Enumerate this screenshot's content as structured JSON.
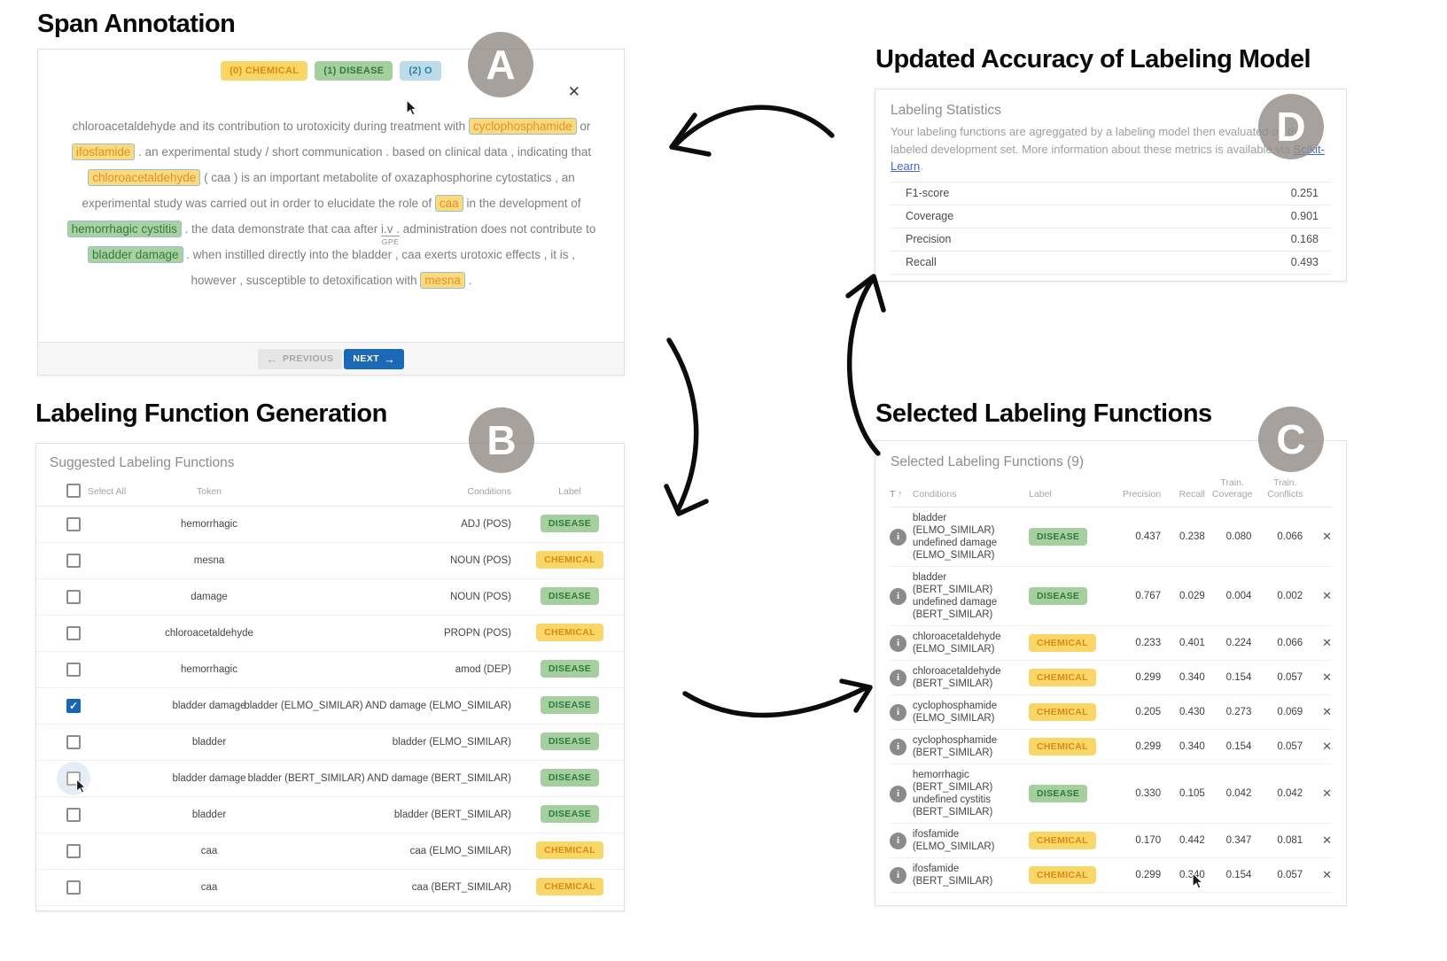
{
  "colors": {
    "chemical_bg": "#F8D667",
    "chemical_text": "#DE8A12",
    "disease_bg": "#A5CF9F",
    "disease_text": "#2F7A3D",
    "o_bg": "#BBDCE8",
    "o_text": "#2C7FA3",
    "next_button_bg": "#1B69B4",
    "link_color": "#4468C8",
    "badge_bg": "#948C88"
  },
  "panels": {
    "span_annotation": {
      "title": "Span Annotation",
      "badge": "A",
      "close_icon": "✕",
      "labels": [
        {
          "text": "(0) CHEMICAL",
          "label_type": "chemical"
        },
        {
          "text": "(1) DISEASE",
          "label_type": "disease"
        },
        {
          "text": "(2) O",
          "label_type": "o"
        }
      ],
      "segments": [
        {
          "type": "text",
          "text": "chloroacetaldehyde and its contribution to urotoxicity during treatment with "
        },
        {
          "type": "chemical",
          "text": "cyclophosphamide"
        },
        {
          "type": "text",
          "text": " or "
        },
        {
          "type": "chemical",
          "text": "ifosfamide"
        },
        {
          "type": "text",
          "text": " . an experimental study / short communication . based on clinical data , indicating that "
        },
        {
          "type": "chemical",
          "text": "chloroacetaldehyde"
        },
        {
          "type": "text",
          "text": " ( caa ) is an important metabolite of oxazaphosphorine cytostatics , an experimental study was carried out in order to elucidate the role of "
        },
        {
          "type": "chemical",
          "text": "caa"
        },
        {
          "type": "text",
          "text": " in the development of "
        },
        {
          "type": "disease",
          "text": "hemorrhagic cystitis"
        },
        {
          "type": "text",
          "text": " . the data demonstrate that caa after "
        },
        {
          "type": "gpe",
          "text": "i.v .",
          "label": "GPE"
        },
        {
          "type": "text",
          "text": " administration does not contribute to "
        },
        {
          "type": "disease",
          "text": "bladder damage"
        },
        {
          "type": "text",
          "text": " . when instilled directly into the bladder , caa exerts urotoxic effects , it is , however , susceptible to detoxification with "
        },
        {
          "type": "chemical",
          "text": "mesna"
        },
        {
          "type": "text",
          "text": " ."
        }
      ],
      "previous_label": "PREVIOUS",
      "next_label": "NEXT",
      "prev_icon": "←",
      "next_icon": "→"
    },
    "labeling_function_generation": {
      "title": "Labeling Function Generation",
      "badge": "B",
      "card_title": "Suggested Labeling Functions",
      "select_all_label": "Select All",
      "columns": {
        "token": "Token",
        "conditions": "Conditions",
        "label": "Label"
      },
      "rows": [
        {
          "token": "hemorrhagic",
          "conditions": "ADJ (POS)",
          "label": "DISEASE",
          "label_type": "disease"
        },
        {
          "token": "mesna",
          "conditions": "NOUN (POS)",
          "label": "CHEMICAL",
          "label_type": "chemical"
        },
        {
          "token": "damage",
          "conditions": "NOUN (POS)",
          "label": "DISEASE",
          "label_type": "disease"
        },
        {
          "token": "chloroacetaldehyde",
          "conditions": "PROPN (POS)",
          "label": "CHEMICAL",
          "label_type": "chemical"
        },
        {
          "token": "hemorrhagic",
          "conditions": "amod (DEP)",
          "label": "DISEASE",
          "label_type": "disease"
        },
        {
          "token": "bladder damage",
          "conditions": "bladder (ELMO_SIMILAR) AND damage (ELMO_SIMILAR)",
          "label": "DISEASE",
          "label_type": "disease",
          "checked": true
        },
        {
          "token": "bladder",
          "conditions": "bladder (ELMO_SIMILAR)",
          "label": "DISEASE",
          "label_type": "disease"
        },
        {
          "token": "bladder damage",
          "conditions": "bladder (BERT_SIMILAR) AND damage (BERT_SIMILAR)",
          "label": "DISEASE",
          "label_type": "disease",
          "hover": true
        },
        {
          "token": "bladder",
          "conditions": "bladder (BERT_SIMILAR)",
          "label": "DISEASE",
          "label_type": "disease"
        },
        {
          "token": "caa",
          "conditions": "caa (ELMO_SIMILAR)",
          "label": "CHEMICAL",
          "label_type": "chemical"
        },
        {
          "token": "caa",
          "conditions": "caa (BERT_SIMILAR)",
          "label": "CHEMICAL",
          "label_type": "chemical"
        }
      ]
    },
    "selected_labeling_functions": {
      "title": "Selected Labeling Functions",
      "badge": "C",
      "card_title": "Selected Labeling Functions (9)",
      "info_icon": "i",
      "remove_icon": "✕",
      "columns": {
        "sort_icons": "T ↑",
        "conditions": "Conditions",
        "label": "Label",
        "precision": "Precision",
        "recall": "Recall",
        "train_coverage": "Train. Coverage",
        "train_conflicts": "Train. Conflicts"
      },
      "rows": [
        {
          "conditions_lines": [
            "bladder",
            "(ELMO_SIMILAR)",
            "undefined damage",
            "(ELMO_SIMILAR)"
          ],
          "label": "DISEASE",
          "label_type": "disease",
          "precision": "0.437",
          "recall": "0.238",
          "train_coverage": "0.080",
          "train_conflicts": "0.066"
        },
        {
          "conditions_lines": [
            "bladder",
            "(BERT_SIMILAR)",
            "undefined damage",
            "(BERT_SIMILAR)"
          ],
          "label": "DISEASE",
          "label_type": "disease",
          "precision": "0.767",
          "recall": "0.029",
          "train_coverage": "0.004",
          "train_conflicts": "0.002"
        },
        {
          "conditions_lines": [
            "chloroacetaldehyde",
            "(ELMO_SIMILAR)"
          ],
          "label": "CHEMICAL",
          "label_type": "chemical",
          "precision": "0.233",
          "recall": "0.401",
          "train_coverage": "0.224",
          "train_conflicts": "0.066"
        },
        {
          "conditions_lines": [
            "chloroacetaldehyde",
            "(BERT_SIMILAR)"
          ],
          "label": "CHEMICAL",
          "label_type": "chemical",
          "precision": "0.299",
          "recall": "0.340",
          "train_coverage": "0.154",
          "train_conflicts": "0.057"
        },
        {
          "conditions_lines": [
            "cyclophosphamide",
            "(ELMO_SIMILAR)"
          ],
          "label": "CHEMICAL",
          "label_type": "chemical",
          "precision": "0.205",
          "recall": "0.430",
          "train_coverage": "0.273",
          "train_conflicts": "0.069"
        },
        {
          "conditions_lines": [
            "cyclophosphamide",
            "(BERT_SIMILAR)"
          ],
          "label": "CHEMICAL",
          "label_type": "chemical",
          "precision": "0.299",
          "recall": "0.340",
          "train_coverage": "0.154",
          "train_conflicts": "0.057"
        },
        {
          "conditions_lines": [
            "hemorrhagic",
            "(BERT_SIMILAR)",
            "undefined cystitis",
            "(BERT_SIMILAR)"
          ],
          "label": "DISEASE",
          "label_type": "disease",
          "precision": "0.330",
          "recall": "0.105",
          "train_coverage": "0.042",
          "train_conflicts": "0.042"
        },
        {
          "conditions_lines": [
            "ifosfamide",
            "(ELMO_SIMILAR)"
          ],
          "label": "CHEMICAL",
          "label_type": "chemical",
          "precision": "0.170",
          "recall": "0.442",
          "train_coverage": "0.347",
          "train_conflicts": "0.081"
        },
        {
          "conditions_lines": [
            "ifosfamide",
            "(BERT_SIMILAR)"
          ],
          "label": "CHEMICAL",
          "label_type": "chemical",
          "precision": "0.299",
          "recall": "0.340",
          "train_coverage": "0.154",
          "train_conflicts": "0.057"
        }
      ]
    },
    "labeling_model": {
      "title": "Updated Accuracy of Labeling Model",
      "badge": "D",
      "card_title": "Labeling Statistics",
      "description": "Your labeling functions are agreggated by a labeling model then evaluated on the labeled development set. More information about these metrics is available via ",
      "link_text": "Scikit-Learn",
      "link_suffix": ".",
      "stats": [
        {
          "label": "F1-score",
          "value": "0.251"
        },
        {
          "label": "Coverage",
          "value": "0.901"
        },
        {
          "label": "Precision",
          "value": "0.168"
        },
        {
          "label": "Recall",
          "value": "0.493"
        }
      ]
    }
  }
}
